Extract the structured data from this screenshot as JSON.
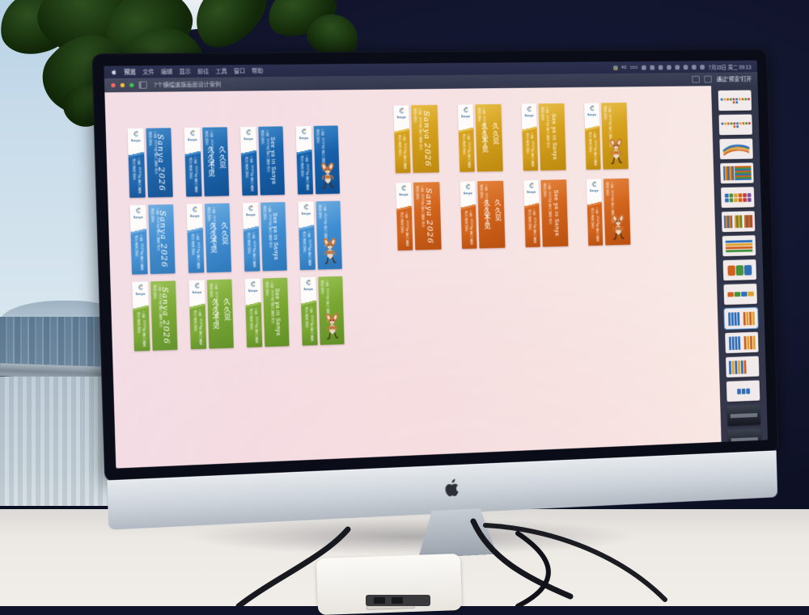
{
  "menu_bar": {
    "menus": [
      "预览",
      "文件",
      "编辑",
      "显示",
      "前往",
      "工具",
      "窗口",
      "帮助"
    ],
    "battery": "40",
    "datetime": "7月15日 周二 09:13",
    "status_icons": [
      "app-icon",
      "pencil-icon",
      "meeting-icon",
      "moon-icon",
      "keyboard-icon",
      "bluetooth-icon",
      "wifi-icon",
      "search-icon",
      "control-center-icon"
    ]
  },
  "window": {
    "title": "7个横幅道旗画面设计案例",
    "open_with": "通过“预览”打开"
  },
  "banner": {
    "logo_word": "Sanya",
    "sub_text": "三亚 2026年第六届亚洲沙滩运动会",
    "slogan_year": "Sanya 2026",
    "slogan_cn_1": "久久不见",
    "slogan_cn_2": "久久见",
    "slogan_en": "See ya in Sanya",
    "mascot_name": "eld-deer-mascot"
  },
  "themes": {
    "blue-dark": {
      "main": "#1661ab",
      "dark": "#0d4e92",
      "light": "#3b86c8"
    },
    "blue": {
      "main": "#3f8ed2",
      "dark": "#2c77ba",
      "light": "#6cabdf"
    },
    "green": {
      "main": "#79a832",
      "dark": "#5f9126",
      "light": "#97bf51"
    },
    "gold": {
      "main": "#d5a01b",
      "dark": "#bd8a10",
      "light": "#e6bd48"
    },
    "orange": {
      "main": "#d2641c",
      "dark": "#b95110",
      "light": "#e2833d"
    }
  },
  "design_rows": [
    {
      "theme": "blue-dark",
      "group": "left"
    },
    {
      "theme": "blue",
      "group": "left"
    },
    {
      "theme": "green",
      "group": "left"
    },
    {
      "theme": "gold",
      "group": "right"
    },
    {
      "theme": "orange",
      "group": "right"
    }
  ],
  "variants": [
    "year",
    "cn",
    "en",
    "mascot"
  ],
  "sidebar_thumbs": [
    "logo-grid",
    "logo-grid",
    "wave",
    "stripe-bars",
    "color-squares",
    "stripe-columns",
    "table-rows",
    "three-cards",
    "low-banners",
    "banners-page",
    "banners-page",
    "banners-left",
    "blue-marks",
    "photo",
    "photo"
  ],
  "palette": [
    "#2f6fb8",
    "#e0a22b",
    "#d2601a",
    "#45923c",
    "#c23a3a",
    "#7a4ea0"
  ]
}
